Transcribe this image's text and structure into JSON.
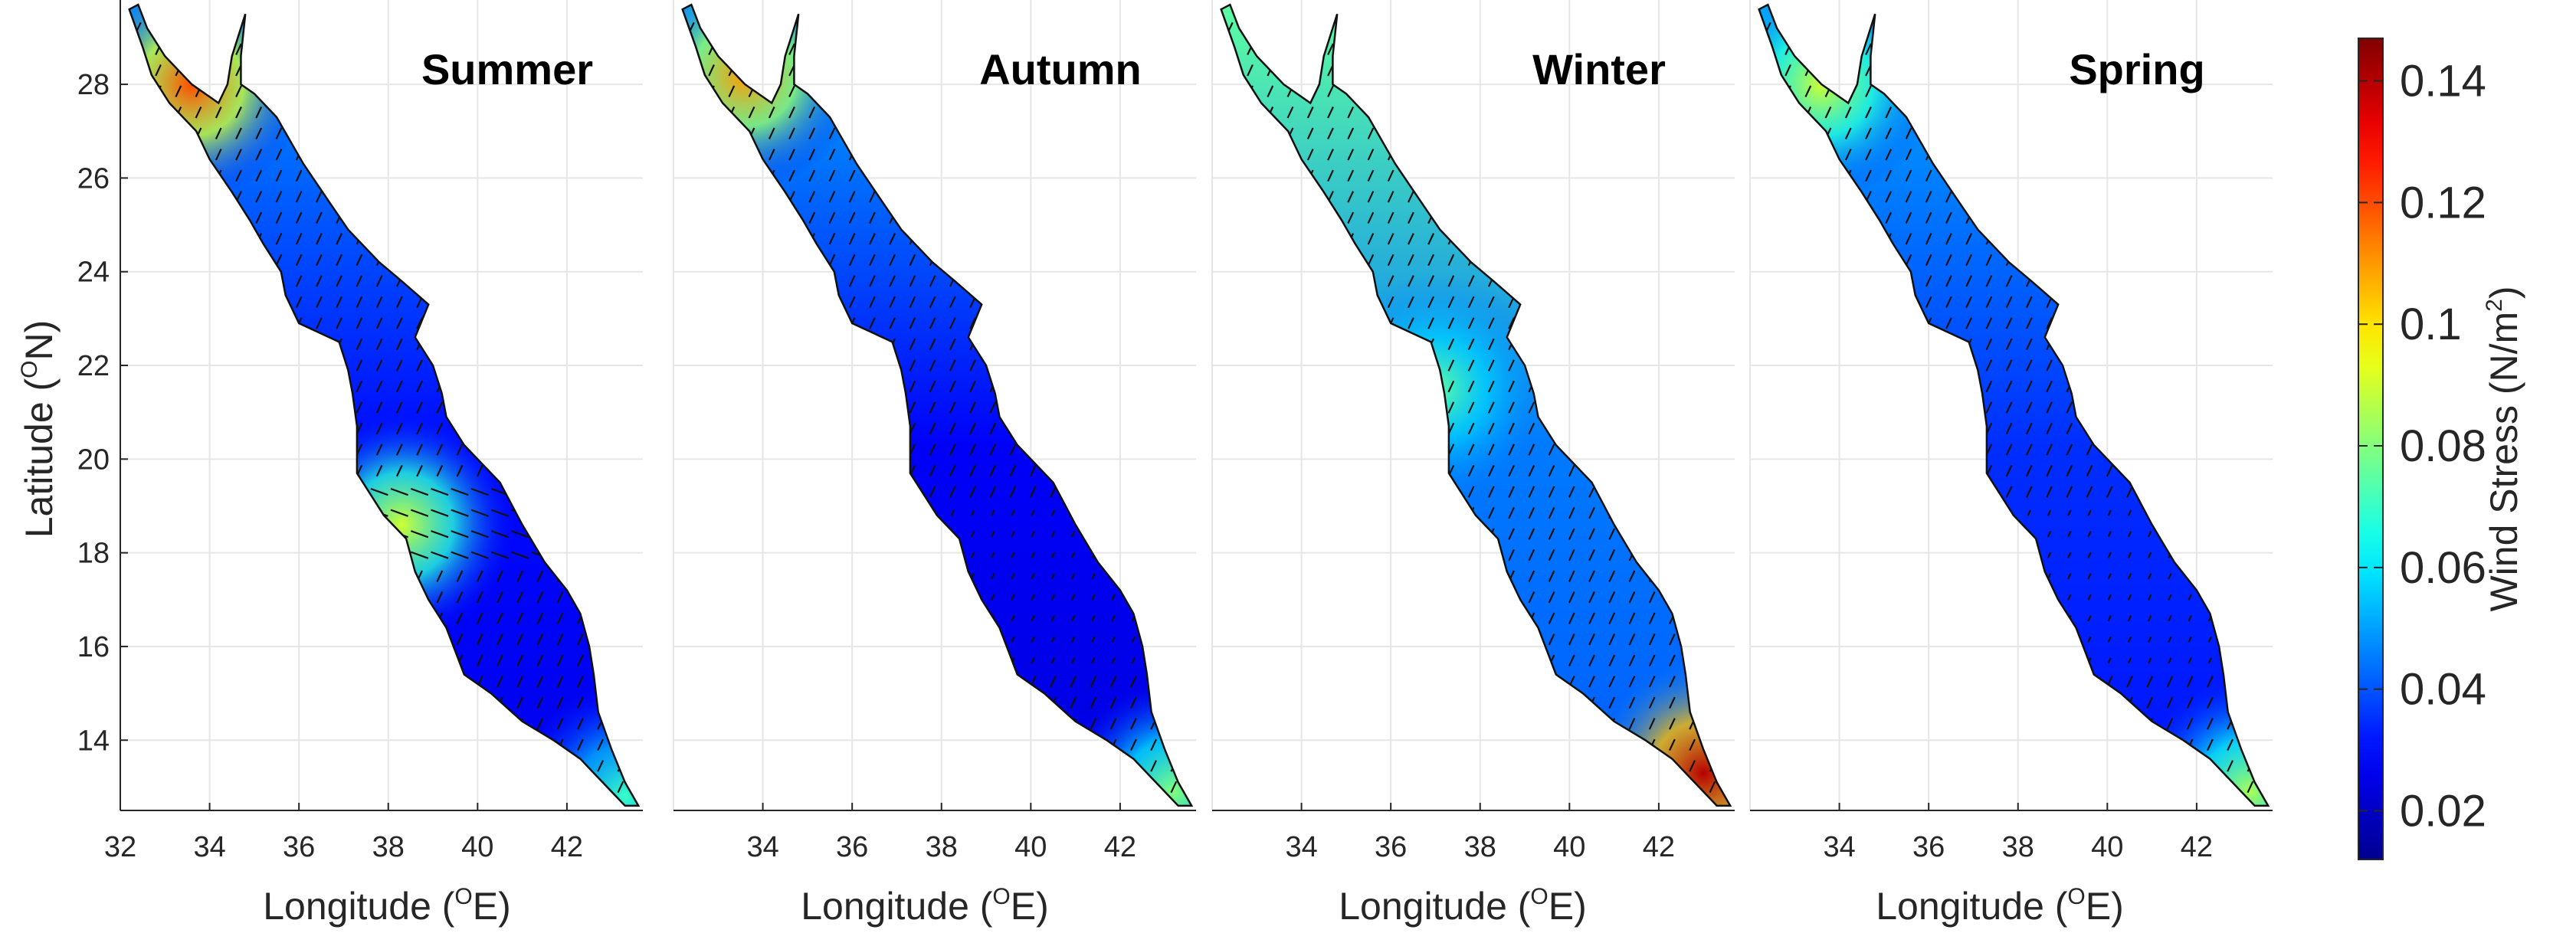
{
  "figure": {
    "ylabel": "Latitude (",
    "ylabel_sup": "O",
    "ylabel_tail": "N)",
    "xlabel": "Longitude (",
    "xlabel_sup": "O",
    "xlabel_tail": "E)",
    "colorbar_label": "Wind Stress (N/m",
    "colorbar_sup": "2",
    "colorbar_tail": ")"
  },
  "chart_data": {
    "type": "heatmap",
    "xlim": [
      32,
      43.7
    ],
    "ylim": [
      12.5,
      29.8
    ],
    "grid": true,
    "xticks": [
      32,
      34,
      36,
      38,
      40,
      42
    ],
    "xtick_labels": [
      "32",
      "34",
      "36",
      "38",
      "40",
      "42"
    ],
    "xtick_labels_other_panels": [
      "34",
      "36",
      "38",
      "40",
      "42"
    ],
    "yticks": [
      14,
      16,
      18,
      20,
      22,
      24,
      26,
      28
    ],
    "ytick_labels": [
      "14",
      "16",
      "18",
      "20",
      "22",
      "24",
      "26",
      "28"
    ],
    "colorbar": {
      "range": [
        0.012,
        0.147
      ],
      "ticks": [
        0.02,
        0.04,
        0.06,
        0.08,
        0.1,
        0.12,
        0.14
      ],
      "tick_labels": [
        "0.02",
        "0.04",
        "0.06",
        "0.08",
        "0.1",
        "0.12",
        "0.14"
      ],
      "colormap": "jet"
    },
    "panels": [
      {
        "title": "Summer",
        "base": 0.03,
        "north_gradient": 0.02,
        "hotspots": [
          {
            "lon": 33.6,
            "lat": 28.0,
            "value": 0.12
          },
          {
            "lon": 38.3,
            "lat": 18.6,
            "value": 0.09
          },
          {
            "lon": 43.3,
            "lat": 12.8,
            "value": 0.07
          }
        ],
        "wind_direction": "NNW to SSE, converging at 18.5N"
      },
      {
        "title": "Autumn",
        "base": 0.028,
        "north_gradient": 0.025,
        "hotspots": [
          {
            "lon": 33.6,
            "lat": 28.2,
            "value": 0.11
          },
          {
            "lon": 43.2,
            "lat": 12.9,
            "value": 0.08
          }
        ],
        "wind_direction": "NNW to SSE, weak in south-central"
      },
      {
        "title": "Winter",
        "base": 0.045,
        "north_gradient": 0.03,
        "hotspots": [
          {
            "lon": 43.0,
            "lat": 13.3,
            "value": 0.14
          },
          {
            "lon": 37.0,
            "lat": 21.5,
            "value": 0.075
          }
        ],
        "wind_direction": "NNW in north, SSE in south, convergence near 19N"
      },
      {
        "title": "Spring",
        "base": 0.035,
        "north_gradient": 0.018,
        "hotspots": [
          {
            "lon": 33.6,
            "lat": 28.0,
            "value": 0.09
          },
          {
            "lon": 43.2,
            "lat": 12.9,
            "value": 0.085
          }
        ],
        "wind_direction": "NNW to SSE"
      }
    ],
    "coastline_lonlat": [
      [
        32.4,
        29.7
      ],
      [
        32.6,
        29.2
      ],
      [
        33.0,
        28.6
      ],
      [
        33.6,
        28.0
      ],
      [
        34.2,
        27.6
      ],
      [
        34.4,
        28.0
      ],
      [
        34.5,
        28.6
      ],
      [
        34.8,
        29.5
      ],
      [
        34.7,
        28.6
      ],
      [
        34.7,
        28.0
      ],
      [
        35.0,
        27.8
      ],
      [
        35.5,
        27.3
      ],
      [
        35.8,
        26.8
      ],
      [
        36.1,
        26.3
      ],
      [
        36.6,
        25.6
      ],
      [
        37.1,
        24.9
      ],
      [
        37.8,
        24.2
      ],
      [
        38.3,
        23.8
      ],
      [
        38.9,
        23.3
      ],
      [
        38.6,
        22.6
      ],
      [
        39.0,
        22.0
      ],
      [
        39.2,
        21.4
      ],
      [
        39.3,
        20.9
      ],
      [
        39.7,
        20.3
      ],
      [
        40.5,
        19.5
      ],
      [
        41.0,
        18.6
      ],
      [
        41.5,
        17.8
      ],
      [
        42.0,
        17.2
      ],
      [
        42.3,
        16.7
      ],
      [
        42.5,
        16.0
      ],
      [
        42.6,
        15.4
      ],
      [
        42.7,
        14.6
      ],
      [
        43.0,
        13.8
      ],
      [
        43.3,
        13.1
      ],
      [
        43.6,
        12.6
      ],
      [
        43.3,
        12.6
      ],
      [
        42.8,
        13.1
      ],
      [
        42.3,
        13.6
      ],
      [
        41.7,
        14.0
      ],
      [
        41.0,
        14.4
      ],
      [
        40.3,
        15.0
      ],
      [
        39.7,
        15.4
      ],
      [
        39.5,
        15.9
      ],
      [
        39.3,
        16.4
      ],
      [
        38.9,
        17.0
      ],
      [
        38.6,
        17.6
      ],
      [
        38.4,
        18.3
      ],
      [
        37.9,
        18.8
      ],
      [
        37.3,
        19.7
      ],
      [
        37.3,
        20.7
      ],
      [
        37.2,
        21.4
      ],
      [
        37.1,
        21.9
      ],
      [
        36.9,
        22.5
      ],
      [
        36.0,
        22.9
      ],
      [
        35.7,
        23.5
      ],
      [
        35.6,
        24.0
      ],
      [
        35.2,
        24.6
      ],
      [
        34.9,
        25.1
      ],
      [
        34.5,
        25.7
      ],
      [
        34.0,
        26.4
      ],
      [
        33.7,
        27.0
      ],
      [
        33.1,
        27.6
      ],
      [
        32.7,
        28.2
      ],
      [
        32.5,
        28.8
      ],
      [
        32.2,
        29.6
      ]
    ]
  }
}
